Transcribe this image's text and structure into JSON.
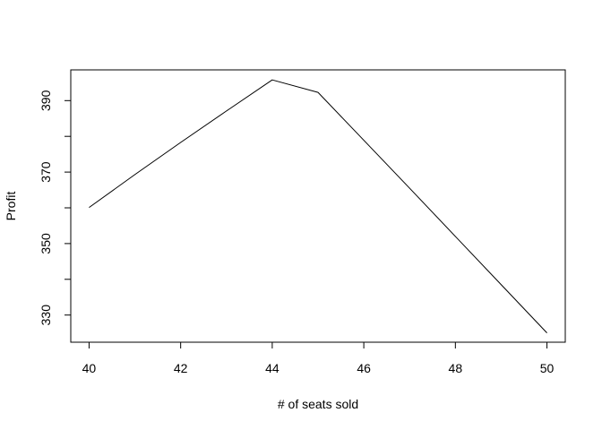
{
  "chart_data": {
    "type": "line",
    "title": "",
    "xlabel": "# of seats sold",
    "ylabel": "Profit",
    "xlim": [
      39.6,
      50.4
    ],
    "ylim": [
      322.4,
      398.6
    ],
    "xticks": [
      40,
      42,
      44,
      46,
      48,
      50
    ],
    "yticks": [
      330,
      350,
      370,
      390
    ],
    "grid": false,
    "legend": "none",
    "series": [
      {
        "x": [
          40,
          41,
          42,
          43,
          44,
          45,
          46,
          47,
          48,
          49,
          50
        ],
        "y": [
          360.1,
          369.3,
          378.3,
          387.1,
          395.8,
          392.3,
          378.9,
          365.5,
          352.0,
          338.5,
          325.0
        ],
        "color": "#000000"
      }
    ]
  }
}
